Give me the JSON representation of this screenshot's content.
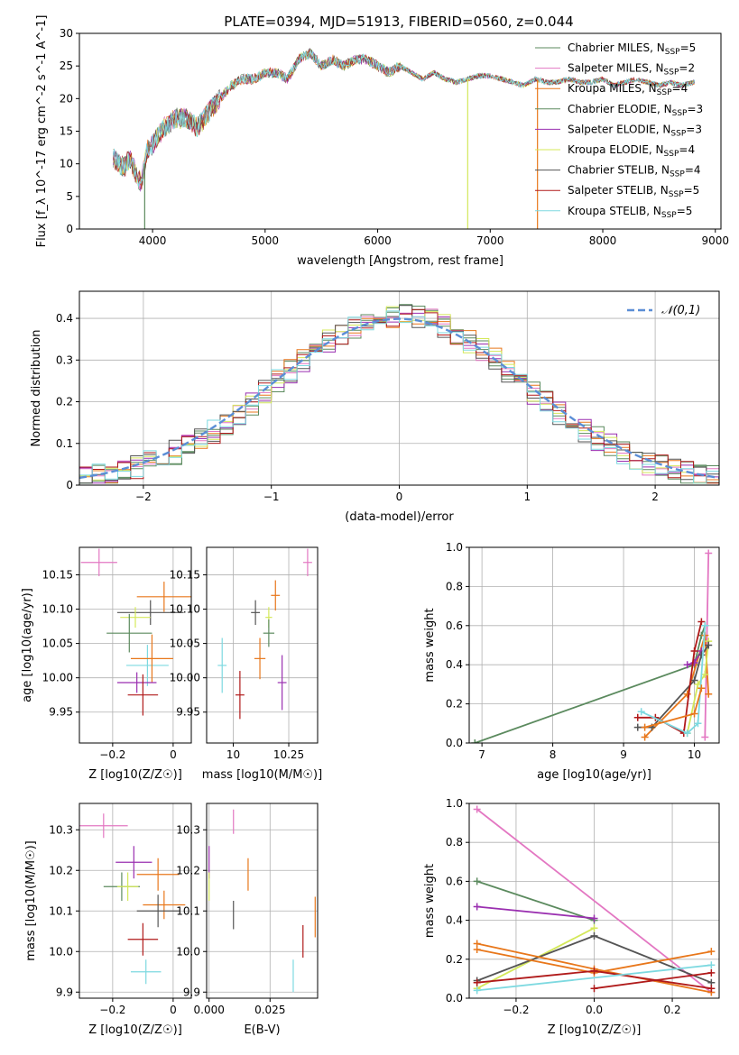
{
  "title": "PLATE=0394, MJD=51913, FIBERID=0560, z=0.044",
  "models": [
    {
      "name": "Chabrier MILES",
      "nssp": "5",
      "color": "#5b8a5e"
    },
    {
      "name": "Salpeter MILES",
      "nssp": "2",
      "color": "#e377c2"
    },
    {
      "name": "Kroupa MILES",
      "nssp": "4",
      "color": "#e8771b"
    },
    {
      "name": "Chabrier ELODIE",
      "nssp": "3",
      "color": "#5b8a5e"
    },
    {
      "name": "Salpeter ELODIE",
      "nssp": "3",
      "color": "#9a2fb0"
    },
    {
      "name": "Kroupa ELODIE",
      "nssp": "4",
      "color": "#d4e85a"
    },
    {
      "name": "Chabrier STELIB",
      "nssp": "4",
      "color": "#555555"
    },
    {
      "name": "Salpeter STELIB",
      "nssp": "5",
      "color": "#b01a1a"
    },
    {
      "name": "Kroupa STELIB",
      "nssp": "5",
      "color": "#7dd9e0"
    }
  ],
  "chart_data": [
    {
      "id": "spectrum",
      "type": "line",
      "xlabel": "wavelength [Angstrom, rest frame]",
      "ylabel": "Flux [f_λ 10^-17 erg cm^-2 s^-1 A^-1]",
      "xlim": [
        3350,
        9050
      ],
      "ylim": [
        0,
        30
      ],
      "xticks": [
        4000,
        5000,
        6000,
        7000,
        8000,
        9000
      ],
      "yticks": [
        0,
        5,
        10,
        15,
        20,
        25,
        30
      ],
      "x": [
        3650,
        3700,
        3750,
        3800,
        3850,
        3900,
        3950,
        4000,
        4100,
        4200,
        4300,
        4400,
        4500,
        4600,
        4700,
        4800,
        4900,
        5000,
        5100,
        5200,
        5300,
        5400,
        5500,
        5600,
        5700,
        5800,
        5900,
        6000,
        6100,
        6200,
        6300,
        6400,
        6500,
        6600,
        6700,
        6800,
        6900,
        7000,
        7100,
        7200,
        7300,
        7400,
        7500,
        7600,
        7700,
        7800,
        7900,
        8000,
        8100,
        8200,
        8300,
        8400,
        8500,
        8600,
        8700,
        8800
      ],
      "y": [
        11,
        10,
        9.5,
        11,
        8.5,
        7,
        12,
        13,
        15.5,
        17,
        17,
        15.5,
        18,
        20,
        22,
        23,
        23,
        24,
        24,
        23,
        26,
        27,
        25,
        26,
        25,
        26,
        26,
        25,
        24,
        25,
        24,
        23,
        24,
        23,
        22.5,
        23,
        23.5,
        23.5,
        23,
        22.5,
        22,
        23,
        22.5,
        22.5,
        23,
        22.5,
        22.5,
        23,
        22,
        22.5,
        23,
        22.5,
        22,
        22.5,
        22,
        22.5
      ],
      "dips": [
        {
          "x": 3930,
          "model": "Chabrier MILES"
        },
        {
          "x": 6800,
          "model": "Kroupa ELODIE"
        },
        {
          "x": 7420,
          "model": "Kroupa MILES"
        }
      ]
    },
    {
      "id": "residuals",
      "type": "histogram",
      "xlabel": "(data-model)/error",
      "ylabel": "Normed distribution",
      "xlim": [
        -2.5,
        2.5
      ],
      "ylim": [
        0,
        0.465
      ],
      "xticks": [
        -2,
        -1,
        0,
        1,
        2
      ],
      "yticks": [
        0,
        0.1,
        0.2,
        0.3,
        0.4
      ],
      "reference": {
        "name": "𝒩(0,1)",
        "color": "#5b8ed6",
        "mean": 0,
        "sigma": 1
      }
    },
    {
      "id": "age_vs_Z",
      "type": "scatter",
      "xlabel": "Z [log10(Z/Z☉)]",
      "ylabel": "age  [log10(age/yr)]",
      "xlim": [
        -0.31,
        0.06
      ],
      "ylim": [
        9.905,
        10.19
      ],
      "xticks": [
        -0.2,
        0.0
      ],
      "yticks": [
        9.95,
        10.0,
        10.05,
        10.1,
        10.15
      ],
      "points": [
        {
          "model": "Salpeter MILES",
          "x": -0.245,
          "y": 10.168,
          "xerr": 0.06,
          "yerr": 0.02
        },
        {
          "model": "Kroupa MILES",
          "x": -0.03,
          "y": 10.118,
          "xerr": 0.09,
          "yerr": 0.022
        },
        {
          "model": "Chabrier STELIB",
          "x": -0.075,
          "y": 10.095,
          "xerr": 0.11,
          "yerr": 0.018
        },
        {
          "model": "Kroupa ELODIE",
          "x": -0.125,
          "y": 10.088,
          "xerr": 0.05,
          "yerr": 0.015
        },
        {
          "model": "Chabrier MILES",
          "x": -0.145,
          "y": 10.065,
          "xerr": 0.075,
          "yerr": 0.028
        },
        {
          "model": "Kroupa STELIB",
          "x": -0.085,
          "y": 10.018,
          "xerr": 0.07,
          "yerr": 0.03
        },
        {
          "model": "Kroupa MILES",
          "x": -0.07,
          "y": 10.028,
          "xerr": 0.07,
          "yerr": 0.035
        },
        {
          "model": "Salpeter ELODIE",
          "x": -0.12,
          "y": 9.993,
          "xerr": 0.065,
          "yerr": 0.015
        },
        {
          "model": "Salpeter STELIB",
          "x": -0.1,
          "y": 9.975,
          "xerr": 0.05,
          "yerr": 0.03
        }
      ]
    },
    {
      "id": "age_vs_mass",
      "type": "scatter",
      "xlabel": "mass [log10(M/M☉)]",
      "ylabel": "",
      "xlim": [
        9.88,
        10.38
      ],
      "ylim": [
        9.905,
        10.19
      ],
      "xticks": [
        10.0,
        10.25
      ],
      "yticks": [
        9.95,
        10.0,
        10.05,
        10.1,
        10.15
      ],
      "points": [
        {
          "model": "Salpeter MILES",
          "x": 10.335,
          "y": 10.168,
          "xerr": 0.02,
          "yerr": 0.02
        },
        {
          "model": "Kroupa MILES",
          "x": 10.19,
          "y": 10.12,
          "xerr": 0.02,
          "yerr": 0.022
        },
        {
          "model": "Chabrier STELIB",
          "x": 10.1,
          "y": 10.095,
          "xerr": 0.02,
          "yerr": 0.018
        },
        {
          "model": "Kroupa ELODIE",
          "x": 10.16,
          "y": 10.088,
          "xerr": 0.015,
          "yerr": 0.015
        },
        {
          "model": "Chabrier MILES",
          "x": 10.16,
          "y": 10.065,
          "xerr": 0.025,
          "yerr": 0.02
        },
        {
          "model": "Kroupa MILES",
          "x": 10.12,
          "y": 10.028,
          "xerr": 0.025,
          "yerr": 0.03
        },
        {
          "model": "Kroupa STELIB",
          "x": 9.95,
          "y": 10.018,
          "xerr": 0.02,
          "yerr": 0.04
        },
        {
          "model": "Salpeter ELODIE",
          "x": 10.22,
          "y": 9.993,
          "xerr": 0.02,
          "yerr": 0.04
        },
        {
          "model": "Salpeter STELIB",
          "x": 10.03,
          "y": 9.975,
          "xerr": 0.02,
          "yerr": 0.035
        }
      ]
    },
    {
      "id": "weight_vs_age",
      "type": "line",
      "xlabel": "age  [log10(age/yr)]",
      "ylabel": "mass weight",
      "xlim": [
        6.82,
        10.35
      ],
      "ylim": [
        0,
        1.0
      ],
      "xticks": [
        7,
        8,
        9,
        10
      ],
      "yticks": [
        0.0,
        0.2,
        0.4,
        0.6,
        0.8,
        1.0
      ],
      "series": [
        {
          "model": "Chabrier MILES",
          "x": [
            6.9,
            10.0,
            10.1,
            10.15
          ],
          "y": [
            0.0,
            0.4,
            0.55,
            0.6
          ]
        },
        {
          "model": "Salpeter MILES",
          "x": [
            10.15,
            10.2
          ],
          "y": [
            0.03,
            0.97
          ]
        },
        {
          "model": "Kroupa MILES",
          "x": [
            9.3,
            9.9,
            10.15,
            10.2
          ],
          "y": [
            0.03,
            0.25,
            0.55,
            0.25
          ]
        },
        {
          "model": "Salpeter ELODIE",
          "x": [
            9.9,
            10.0,
            10.1
          ],
          "y": [
            0.4,
            0.41,
            0.47
          ]
        },
        {
          "model": "Kroupa ELODIE",
          "x": [
            9.9,
            10.05,
            10.15,
            10.2
          ],
          "y": [
            0.05,
            0.3,
            0.35,
            0.52
          ]
        },
        {
          "model": "Chabrier STELIB",
          "x": [
            9.2,
            9.4,
            10.0,
            10.1,
            10.2
          ],
          "y": [
            0.08,
            0.08,
            0.32,
            0.45,
            0.5
          ]
        },
        {
          "model": "Salpeter STELIB",
          "x": [
            9.2,
            9.45,
            9.85,
            10.0,
            10.1
          ],
          "y": [
            0.13,
            0.13,
            0.05,
            0.47,
            0.62
          ]
        },
        {
          "model": "Kroupa STELIB",
          "x": [
            9.25,
            9.9,
            10.05,
            10.15
          ],
          "y": [
            0.16,
            0.05,
            0.1,
            0.6
          ]
        },
        {
          "model": "Kroupa MILES",
          "x": [
            9.3,
            10.0,
            10.1
          ],
          "y": [
            0.08,
            0.15,
            0.28
          ]
        }
      ]
    },
    {
      "id": "mass_vs_Z",
      "type": "scatter",
      "xlabel": "Z [log10(Z/Z☉)]",
      "ylabel": "mass [log10(M/M☉)]",
      "xlim": [
        -0.31,
        0.06
      ],
      "ylim": [
        9.885,
        10.365
      ],
      "xticks": [
        -0.2,
        0.0
      ],
      "yticks": [
        9.9,
        10.0,
        10.1,
        10.2,
        10.3
      ],
      "points": [
        {
          "model": "Salpeter MILES",
          "x": -0.23,
          "y": 10.31,
          "xerr": 0.08,
          "yerr": 0.03
        },
        {
          "model": "Salpeter ELODIE",
          "x": -0.13,
          "y": 10.22,
          "xerr": 0.06,
          "yerr": 0.04
        },
        {
          "model": "Kroupa MILES",
          "x": -0.05,
          "y": 10.19,
          "xerr": 0.07,
          "yerr": 0.04
        },
        {
          "model": "Chabrier MILES",
          "x": -0.17,
          "y": 10.16,
          "xerr": 0.06,
          "yerr": 0.035
        },
        {
          "model": "Kroupa ELODIE",
          "x": -0.15,
          "y": 10.16,
          "xerr": 0.035,
          "yerr": 0.035
        },
        {
          "model": "Kroupa MILES",
          "x": -0.03,
          "y": 10.115,
          "xerr": 0.07,
          "yerr": 0.035
        },
        {
          "model": "Chabrier STELIB",
          "x": -0.05,
          "y": 10.1,
          "xerr": 0.07,
          "yerr": 0.04
        },
        {
          "model": "Salpeter STELIB",
          "x": -0.1,
          "y": 10.03,
          "xerr": 0.05,
          "yerr": 0.04
        },
        {
          "model": "Kroupa STELIB",
          "x": -0.09,
          "y": 9.95,
          "xerr": 0.05,
          "yerr": 0.03
        }
      ]
    },
    {
      "id": "mass_vs_EBV",
      "type": "scatter",
      "xlabel": "E(B-V)",
      "ylabel": "",
      "xlim": [
        -0.001,
        0.0445
      ],
      "ylim": [
        9.885,
        10.365
      ],
      "xticks": [
        0.0,
        0.025
      ],
      "yticks": [
        9.9,
        10.0,
        10.1,
        10.2,
        10.3
      ],
      "points": [
        {
          "model": "Salpeter MILES",
          "x": 0.01,
          "y": 10.32,
          "xerr": 0.0,
          "yerr": 0.03
        },
        {
          "model": "Salpeter ELODIE",
          "x": 0.0,
          "y": 10.22,
          "xerr": 0.0,
          "yerr": 0.04
        },
        {
          "model": "Kroupa MILES",
          "x": 0.016,
          "y": 10.19,
          "xerr": 0.0,
          "yerr": 0.04
        },
        {
          "model": "Kroupa ELODIE",
          "x": 0.0,
          "y": 10.16,
          "xerr": 0.0,
          "yerr": 0.035
        },
        {
          "model": "Chabrier STELIB",
          "x": 0.01,
          "y": 10.09,
          "xerr": 0.0,
          "yerr": 0.035
        },
        {
          "model": "Kroupa MILES",
          "x": 0.0435,
          "y": 10.085,
          "xerr": 0.0,
          "yerr": 0.05
        },
        {
          "model": "Salpeter STELIB",
          "x": 0.0385,
          "y": 10.025,
          "xerr": 0.0,
          "yerr": 0.04
        },
        {
          "model": "Kroupa STELIB",
          "x": 0.0345,
          "y": 9.94,
          "xerr": 0.0,
          "yerr": 0.04
        }
      ]
    },
    {
      "id": "weight_vs_Z",
      "type": "line",
      "xlabel": "Z [log10(Z/Z☉)]",
      "ylabel": "mass weight",
      "xlim": [
        -0.32,
        0.32
      ],
      "ylim": [
        0,
        1.0
      ],
      "xticks": [
        -0.2,
        0.0,
        0.2
      ],
      "yticks": [
        0.0,
        0.2,
        0.4,
        0.6,
        0.8,
        1.0
      ],
      "series": [
        {
          "model": "Salpeter MILES",
          "x": [
            -0.3,
            0.3
          ],
          "y": [
            0.97,
            0.03
          ]
        },
        {
          "model": "Chabrier MILES",
          "x": [
            -0.3,
            0.0
          ],
          "y": [
            0.6,
            0.4
          ]
        },
        {
          "model": "Salpeter ELODIE",
          "x": [
            -0.3,
            0.0
          ],
          "y": [
            0.47,
            0.41
          ]
        },
        {
          "model": "Kroupa ELODIE",
          "x": [
            -0.3,
            0.0
          ],
          "y": [
            0.05,
            0.36
          ]
        },
        {
          "model": "Chabrier STELIB",
          "x": [
            -0.3,
            0.0,
            0.3
          ],
          "y": [
            0.09,
            0.32,
            0.08
          ]
        },
        {
          "model": "Kroupa MILES",
          "x": [
            -0.3,
            0.0,
            0.3
          ],
          "y": [
            0.28,
            0.15,
            0.03
          ]
        },
        {
          "model": "Kroupa MILES",
          "x": [
            -0.3,
            0.0,
            0.3
          ],
          "y": [
            0.25,
            0.13,
            0.24
          ]
        },
        {
          "model": "Salpeter STELIB",
          "x": [
            -0.3,
            0.0,
            0.3
          ],
          "y": [
            0.08,
            0.14,
            0.05
          ]
        },
        {
          "model": "Salpeter STELIB",
          "x": [
            0.0,
            0.3
          ],
          "y": [
            0.05,
            0.13
          ]
        },
        {
          "model": "Kroupa STELIB",
          "x": [
            -0.3,
            0.3
          ],
          "y": [
            0.04,
            0.17
          ]
        }
      ]
    }
  ]
}
